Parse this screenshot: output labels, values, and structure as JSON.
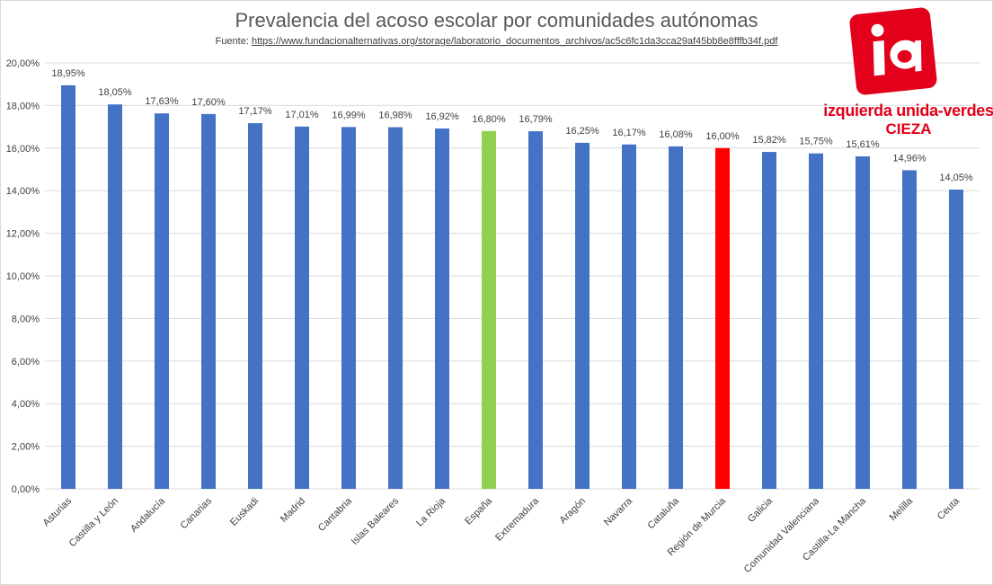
{
  "colors": {
    "default_bar": "#4472c4",
    "highlight_spain": "#92d050",
    "highlight_murcia": "#ff0000",
    "gridline": "#d9d9d9",
    "text": "#404040",
    "logo_red": "#e2001a"
  },
  "header": {
    "source_prefix": "Fuente: ",
    "source_url": "https://www.fundacionalternativas.org/storage/laboratorio_documentos_archivos/ac5c6fc1da3cca29af45bb8e8fffb34f.pdf"
  },
  "logo": {
    "mark_text": "ia",
    "line1": "izquierda unida-verdes",
    "line2": "CIEZA"
  },
  "chart_data": {
    "type": "bar",
    "title": "Prevalencia del acoso escolar por comunidades autónomas",
    "xlabel": "",
    "ylabel": "",
    "ylim": [
      0,
      20
    ],
    "yticks": [
      "0,00%",
      "2,00%",
      "4,00%",
      "6,00%",
      "8,00%",
      "10,00%",
      "12,00%",
      "14,00%",
      "16,00%",
      "18,00%",
      "20,00%"
    ],
    "grid": true,
    "legend": "none",
    "categories": [
      "Asturias",
      "Castilla y León",
      "Andalucía",
      "Canarias",
      "Euskadi",
      "Madrid",
      "Cantabria",
      "Islas Baleares",
      "La Rioja",
      "España",
      "Extremadura",
      "Aragón",
      "Navarra",
      "Cataluña",
      "Región de Murcia",
      "Galicia",
      "Comunidad Valenciana",
      "Castilla-La Mancha",
      "Melilla",
      "Ceuta"
    ],
    "values": [
      18.95,
      18.05,
      17.63,
      17.6,
      17.17,
      17.01,
      16.99,
      16.98,
      16.92,
      16.8,
      16.79,
      16.25,
      16.17,
      16.08,
      16.0,
      15.82,
      15.75,
      15.61,
      14.96,
      14.05
    ],
    "data_labels": [
      "18,95%",
      "18,05%",
      "17,63%",
      "17,60%",
      "17,17%",
      "17,01%",
      "16,99%",
      "16,98%",
      "16,92%",
      "16,80%",
      "16,79%",
      "16,25%",
      "16,17%",
      "16,08%",
      "16,00%",
      "15,82%",
      "15,75%",
      "15,61%",
      "14,96%",
      "14,05%"
    ],
    "highlights": {
      "España": "#92d050",
      "Región de Murcia": "#ff0000"
    }
  }
}
